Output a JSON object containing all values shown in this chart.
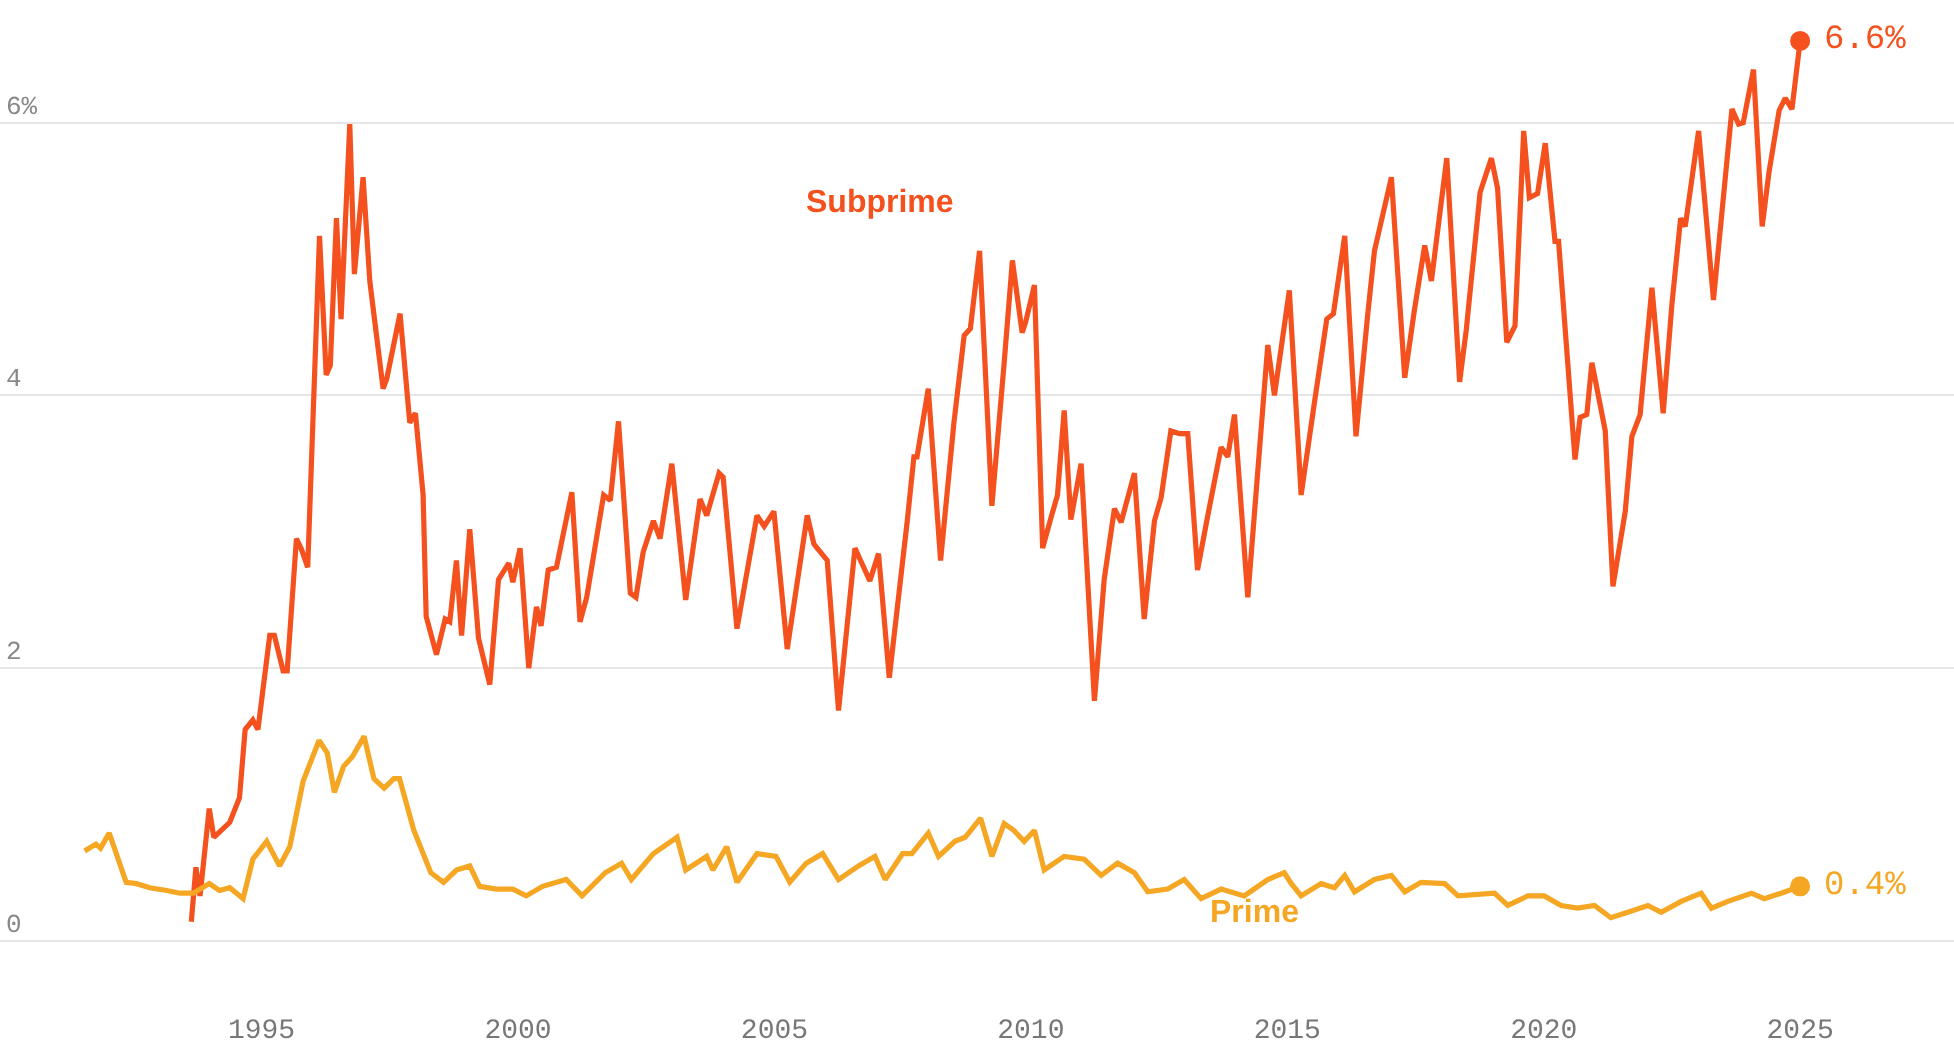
{
  "chart_data": {
    "type": "line",
    "xlim": [
      1989.9,
      2028.0
    ],
    "xticks": [
      1995,
      2000,
      2005,
      2010,
      2015,
      2020,
      2025
    ],
    "ylim": [
      -0.8,
      6.9
    ],
    "yticks": [
      0,
      2,
      4,
      {
        "value": 6,
        "label": "6%"
      }
    ],
    "grid": "y",
    "legend": false,
    "marker": "none",
    "line_style": "solid",
    "series": [
      {
        "name": "Subprime",
        "color": "#f4511e",
        "x": [
          1993.63,
          1993.72,
          1993.8,
          1993.98,
          1994.07,
          1994.38,
          1994.57,
          1994.68,
          1994.83,
          1994.93,
          1995.16,
          1995.25,
          1995.42,
          1995.5,
          1995.68,
          1995.78,
          1995.9,
          1996.13,
          1996.26,
          1996.34,
          1996.46,
          1996.55,
          1996.72,
          1996.81,
          1996.98,
          1997.11,
          1997.37,
          1997.44,
          1997.7,
          1997.89,
          1998.0,
          1998.15,
          1998.21,
          1998.41,
          1998.58,
          1998.67,
          1998.8,
          1998.9,
          1999.06,
          1999.23,
          1999.45,
          1999.62,
          1999.82,
          1999.9,
          2000.04,
          2000.21,
          2000.36,
          2000.45,
          2000.59,
          2000.75,
          2001.05,
          2001.21,
          2001.34,
          2001.67,
          2001.8,
          2001.96,
          2002.19,
          2002.3,
          2002.44,
          2002.64,
          2002.77,
          2003.0,
          2003.27,
          2003.55,
          2003.68,
          2003.92,
          2004.0,
          2004.27,
          2004.66,
          2004.8,
          2004.99,
          2005.25,
          2005.64,
          2005.77,
          2006.03,
          2006.25,
          2006.57,
          2006.74,
          2006.86,
          2007.03,
          2007.24,
          2007.59,
          2007.72,
          2007.78,
          2008.0,
          2008.24,
          2008.5,
          2008.7,
          2008.82,
          2009.0,
          2009.24,
          2009.48,
          2009.64,
          2009.83,
          2009.9,
          2010.07,
          2010.23,
          2010.39,
          2010.52,
          2010.65,
          2010.78,
          2010.98,
          2011.24,
          2011.43,
          2011.63,
          2011.76,
          2012.02,
          2012.21,
          2012.41,
          2012.54,
          2012.73,
          2012.9,
          2013.06,
          2013.25,
          2013.44,
          2013.71,
          2013.84,
          2013.97,
          2014.23,
          2014.62,
          2014.75,
          2015.04,
          2015.27,
          2015.53,
          2015.77,
          2015.9,
          2016.12,
          2016.34,
          2016.57,
          2016.7,
          2017.03,
          2017.29,
          2017.48,
          2017.68,
          2017.81,
          2018.11,
          2018.36,
          2018.49,
          2018.76,
          2018.98,
          2019.1,
          2019.28,
          2019.44,
          2019.61,
          2019.72,
          2019.88,
          2020.03,
          2020.22,
          2020.29,
          2020.61,
          2020.71,
          2020.84,
          2020.94,
          2021.2,
          2021.35,
          2021.59,
          2021.72,
          2021.88,
          2022.11,
          2022.33,
          2022.5,
          2022.67,
          2022.76,
          2023.02,
          2023.31,
          2023.67,
          2023.8,
          2023.89,
          2024.09,
          2024.26,
          2024.39,
          2024.59,
          2024.71,
          2024.84,
          2025.0
        ],
        "values": [
          0.14,
          0.54,
          0.33,
          0.97,
          0.76,
          0.87,
          1.05,
          1.55,
          1.62,
          1.55,
          2.24,
          2.24,
          1.98,
          1.98,
          2.95,
          2.87,
          2.74,
          5.17,
          4.15,
          4.22,
          5.3,
          4.56,
          5.99,
          4.89,
          5.6,
          4.84,
          4.05,
          4.12,
          4.6,
          3.8,
          3.87,
          3.27,
          2.38,
          2.1,
          2.36,
          2.34,
          2.79,
          2.24,
          3.02,
          2.22,
          1.88,
          2.65,
          2.77,
          2.63,
          2.88,
          2.0,
          2.45,
          2.31,
          2.72,
          2.74,
          3.29,
          2.34,
          2.52,
          3.27,
          3.23,
          3.81,
          2.55,
          2.52,
          2.85,
          3.08,
          2.95,
          3.5,
          2.5,
          3.24,
          3.12,
          3.43,
          3.4,
          2.29,
          3.12,
          3.04,
          3.15,
          2.14,
          3.12,
          2.91,
          2.79,
          1.69,
          2.88,
          2.74,
          2.64,
          2.84,
          1.93,
          3.08,
          3.55,
          3.55,
          4.05,
          2.79,
          3.8,
          4.44,
          4.49,
          5.06,
          3.19,
          4.24,
          4.99,
          4.46,
          4.54,
          4.81,
          2.88,
          3.1,
          3.27,
          3.89,
          3.09,
          3.5,
          1.76,
          2.65,
          3.17,
          3.07,
          3.43,
          2.36,
          3.08,
          3.25,
          3.74,
          3.72,
          3.72,
          2.72,
          3.1,
          3.62,
          3.55,
          3.86,
          2.52,
          4.37,
          4.0,
          4.77,
          3.27,
          3.95,
          4.56,
          4.6,
          5.17,
          3.7,
          4.6,
          5.06,
          5.6,
          4.13,
          4.63,
          5.1,
          4.84,
          5.74,
          4.1,
          4.48,
          5.49,
          5.74,
          5.52,
          4.39,
          4.51,
          5.94,
          5.45,
          5.48,
          5.85,
          5.13,
          5.13,
          3.53,
          3.84,
          3.86,
          4.24,
          3.74,
          2.6,
          3.15,
          3.7,
          3.86,
          4.79,
          3.87,
          4.67,
          5.3,
          5.24,
          5.94,
          4.7,
          6.1,
          5.99,
          6.0,
          6.39,
          5.24,
          5.63,
          6.09,
          6.18,
          6.1,
          6.6
        ]
      },
      {
        "name": "Prime",
        "color": "#f5a623",
        "x": [
          1991.55,
          1991.77,
          1991.86,
          1992.03,
          1992.36,
          1992.56,
          1992.82,
          1993.15,
          1993.41,
          1993.67,
          1993.98,
          1994.18,
          1994.38,
          1994.64,
          1994.83,
          1995.1,
          1995.35,
          1995.55,
          1995.81,
          1996.12,
          1996.28,
          1996.42,
          1996.6,
          1996.77,
          1997.0,
          1997.19,
          1997.39,
          1997.58,
          1997.69,
          1997.97,
          1998.3,
          1998.55,
          1998.8,
          1999.06,
          1999.25,
          1999.58,
          1999.9,
          2000.16,
          2000.48,
          2000.94,
          2001.25,
          2001.7,
          2002.02,
          2002.21,
          2002.64,
          2003.1,
          2003.27,
          2003.68,
          2003.8,
          2004.07,
          2004.27,
          2004.66,
          2005.03,
          2005.3,
          2005.62,
          2005.94,
          2006.25,
          2006.64,
          2006.96,
          2007.16,
          2007.5,
          2007.68,
          2008.0,
          2008.2,
          2008.52,
          2008.72,
          2009.02,
          2009.24,
          2009.48,
          2009.67,
          2009.87,
          2010.07,
          2010.26,
          2010.65,
          2011.04,
          2011.37,
          2011.69,
          2012.02,
          2012.28,
          2012.67,
          2012.99,
          2013.32,
          2013.71,
          2014.16,
          2014.62,
          2014.94,
          2015.08,
          2015.27,
          2015.66,
          2015.92,
          2016.12,
          2016.31,
          2016.7,
          2017.03,
          2017.29,
          2017.61,
          2018.07,
          2018.33,
          2019.04,
          2019.3,
          2019.69,
          2020.01,
          2020.34,
          2020.66,
          2020.99,
          2021.31,
          2021.64,
          2022.03,
          2022.29,
          2022.68,
          2023.07,
          2023.27,
          2023.59,
          2024.05,
          2024.3,
          2024.63,
          2025.0
        ],
        "values": [
          0.66,
          0.71,
          0.68,
          0.79,
          0.43,
          0.42,
          0.39,
          0.37,
          0.35,
          0.35,
          0.42,
          0.37,
          0.39,
          0.31,
          0.6,
          0.73,
          0.55,
          0.69,
          1.17,
          1.47,
          1.38,
          1.09,
          1.28,
          1.35,
          1.5,
          1.19,
          1.12,
          1.19,
          1.19,
          0.81,
          0.5,
          0.43,
          0.52,
          0.55,
          0.4,
          0.38,
          0.38,
          0.33,
          0.4,
          0.45,
          0.33,
          0.5,
          0.57,
          0.45,
          0.64,
          0.76,
          0.52,
          0.62,
          0.52,
          0.69,
          0.43,
          0.64,
          0.62,
          0.43,
          0.57,
          0.64,
          0.45,
          0.55,
          0.62,
          0.45,
          0.64,
          0.64,
          0.79,
          0.62,
          0.73,
          0.76,
          0.9,
          0.62,
          0.86,
          0.81,
          0.73,
          0.81,
          0.52,
          0.62,
          0.6,
          0.48,
          0.57,
          0.5,
          0.36,
          0.38,
          0.45,
          0.31,
          0.38,
          0.33,
          0.45,
          0.5,
          0.42,
          0.33,
          0.42,
          0.39,
          0.48,
          0.36,
          0.45,
          0.48,
          0.36,
          0.43,
          0.42,
          0.33,
          0.35,
          0.26,
          0.33,
          0.33,
          0.26,
          0.24,
          0.26,
          0.17,
          0.21,
          0.26,
          0.21,
          0.29,
          0.35,
          0.24,
          0.29,
          0.35,
          0.31,
          0.35,
          0.4
        ]
      }
    ],
    "annotations": [
      {
        "text": "6.6%",
        "x": 2025.0,
        "y": 6.6
      },
      {
        "text": "0.4%",
        "x": 2025.0,
        "y": 0.4
      }
    ]
  }
}
